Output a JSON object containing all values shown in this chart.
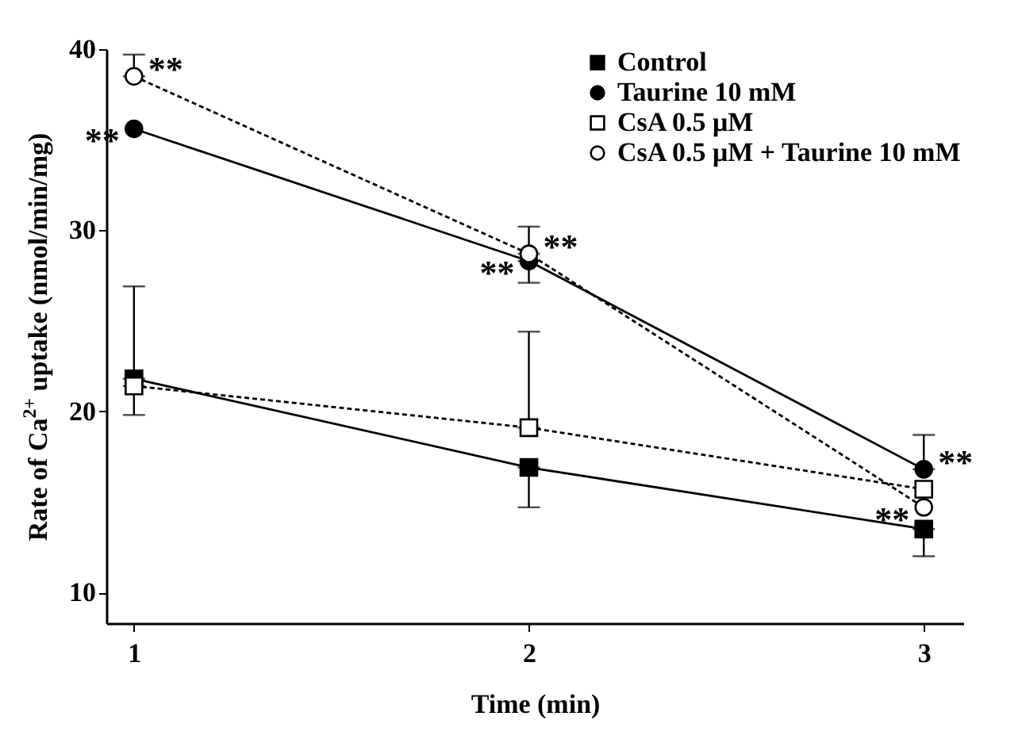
{
  "chart_data": {
    "type": "line",
    "xlabel": "Time (min)",
    "ylabel": "Rate of Ca$^{2+}$ uptake (nmol/min/mg)",
    "x": [
      1,
      2,
      3
    ],
    "xlim": [
      0.93,
      3.1
    ],
    "xticks": [
      1,
      2,
      3
    ],
    "ylim": [
      8.3,
      40
    ],
    "yticks": [
      10,
      20,
      30,
      40
    ],
    "grid": false,
    "legend": "top right",
    "series": [
      {
        "name": "Control",
        "color": "#000000",
        "marker": "square",
        "line_style": "solid",
        "values": [
          21.8,
          16.9,
          13.5
        ],
        "errors": [
          [
            21.8,
            26.9
          ],
          [
            14.7,
            16.9
          ],
          [
            12.0,
            13.5
          ]
        ]
      },
      {
        "name": "Taurine 10 mM",
        "color": "#000000",
        "marker": "circle",
        "line_style": "solid",
        "values": [
          35.6,
          28.3,
          16.8
        ],
        "errors": [
          null,
          [
            27.1,
            28.3
          ],
          [
            16.8,
            18.7
          ]
        ]
      },
      {
        "name": "CsA 0.5 μM",
        "color": "#000000",
        "marker": "square",
        "line_style": "dashed",
        "values": [
          21.4,
          19.1,
          15.7
        ],
        "errors": [
          [
            19.8,
            21.4
          ],
          [
            19.1,
            24.4
          ],
          null
        ]
      },
      {
        "name": "CsA 0.5 μM + Taurine 10 mM",
        "color": "#000000",
        "marker": "circle",
        "line_style": "dashed",
        "values": [
          38.5,
          28.7,
          14.7
        ],
        "errors": [
          [
            38.5,
            39.7
          ],
          [
            28.7,
            30.2
          ],
          null
        ]
      }
    ],
    "annotations": [
      {
        "text": "**",
        "x": 1,
        "y": 38.5
      },
      {
        "text": "**",
        "x": 1,
        "y": 35.6
      },
      {
        "text": "**",
        "x": 2,
        "y": 28.7
      },
      {
        "text": "**",
        "x": 2,
        "y": 28.3
      },
      {
        "text": "**",
        "x": 3,
        "y": 16.8
      },
      {
        "text": "**",
        "x": 3,
        "y": 14.7
      }
    ]
  }
}
